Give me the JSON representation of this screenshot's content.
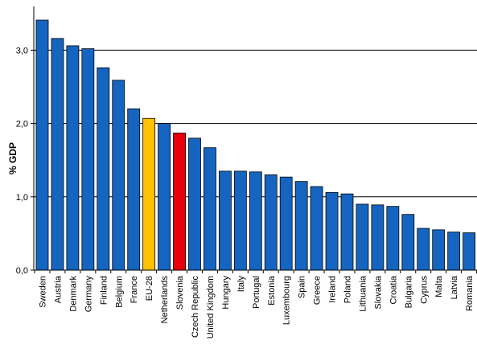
{
  "chart_data": {
    "type": "bar",
    "title": "",
    "xlabel": "",
    "ylabel": "% GDP",
    "ylim": [
      0,
      3.5
    ],
    "yticks": [
      0,
      1,
      2,
      3
    ],
    "ytick_labels": [
      "0,0",
      "1,0",
      "2,0",
      "3,0"
    ],
    "grid": "horizontal",
    "legend": "none",
    "categories": [
      "Sweden",
      "Austria",
      "Denmark",
      "Germany",
      "Finland",
      "Belgium",
      "France",
      "EU-28",
      "Netherlands",
      "Slovenia",
      "Czech Republic",
      "United Kingdom",
      "Hungary",
      "Italy",
      "Portugal",
      "Estonia",
      "Luxembourg",
      "Spain",
      "Greece",
      "Ireland",
      "Poland",
      "Lithuania",
      "Slovakia",
      "Croatia",
      "Bulgaria",
      "Cyprus",
      "Malta",
      "Latvia",
      "Romania"
    ],
    "values": [
      3.41,
      3.16,
      3.06,
      3.02,
      2.76,
      2.59,
      2.2,
      2.07,
      2.0,
      1.87,
      1.8,
      1.67,
      1.35,
      1.35,
      1.34,
      1.3,
      1.27,
      1.21,
      1.14,
      1.06,
      1.04,
      0.9,
      0.89,
      0.87,
      0.76,
      0.57,
      0.55,
      0.52,
      0.51
    ],
    "colors": {
      "default": "#1565c0",
      "highlights": {
        "EU-28": "#ffc000",
        "Slovenia": "#e8000b"
      },
      "bar_stroke": "#000000",
      "grid": "#000000"
    }
  }
}
